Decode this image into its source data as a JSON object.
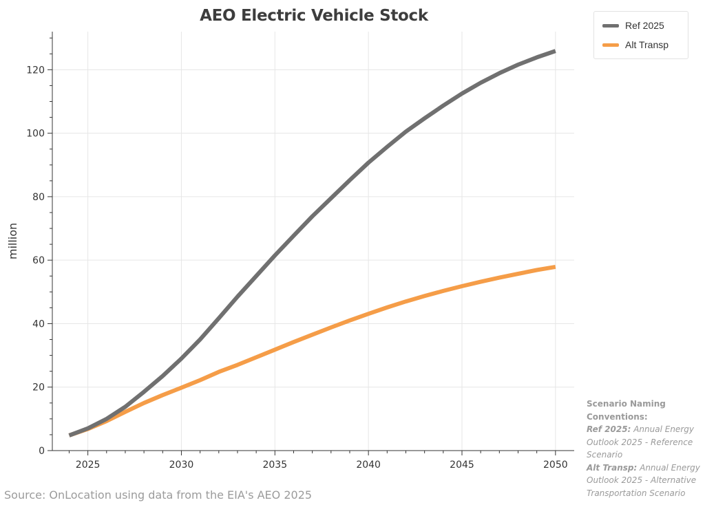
{
  "chart_data": {
    "type": "line",
    "title": "AEO Electric Vehicle Stock",
    "xlabel": "",
    "ylabel": "million",
    "xlim": [
      2023.1,
      2051.0
    ],
    "ylim": [
      0,
      132
    ],
    "xticks": [
      2025,
      2030,
      2035,
      2040,
      2045,
      2050
    ],
    "yticks": [
      0,
      20,
      40,
      60,
      80,
      100,
      120
    ],
    "grid": true,
    "legend_position": "top-right, outside plot",
    "x": [
      2024,
      2025,
      2026,
      2027,
      2028,
      2029,
      2030,
      2031,
      2032,
      2033,
      2034,
      2035,
      2036,
      2037,
      2038,
      2039,
      2040,
      2041,
      2042,
      2043,
      2044,
      2045,
      2046,
      2047,
      2048,
      2049,
      2050
    ],
    "series": [
      {
        "name": "Ref 2025",
        "color": "#707070",
        "values": [
          4.8,
          7.0,
          10.0,
          13.8,
          18.5,
          23.5,
          29.0,
          35.0,
          41.7,
          48.5,
          55.0,
          61.5,
          67.7,
          73.8,
          79.5,
          85.2,
          90.7,
          95.7,
          100.5,
          104.7,
          108.7,
          112.5,
          115.9,
          118.9,
          121.6,
          123.9,
          125.9
        ]
      },
      {
        "name": "Alt Transp",
        "color": "#f59d48",
        "values": [
          4.8,
          6.8,
          9.3,
          12.2,
          15.0,
          17.5,
          19.8,
          22.2,
          24.8,
          27.0,
          29.4,
          31.8,
          34.2,
          36.5,
          38.8,
          41.0,
          43.1,
          45.1,
          47.0,
          48.7,
          50.3,
          51.8,
          53.2,
          54.5,
          55.7,
          56.9,
          57.9
        ]
      }
    ]
  },
  "legend": {
    "items": [
      {
        "label": "Ref 2025",
        "color": "#707070"
      },
      {
        "label": "Alt Transp",
        "color": "#f59d48"
      }
    ]
  },
  "notes": {
    "heading": "Scenario Naming Conventions:",
    "ref_key": "Ref 2025:",
    "ref_text": "Annual Energy Outlook 2025 - Reference Scenario",
    "alt_key": "Alt Transp:",
    "alt_text": "Annual Energy Outlook 2025 - Alternative Transportation Scenario"
  },
  "source": "Source: OnLocation using data from the EIA's AEO 2025"
}
